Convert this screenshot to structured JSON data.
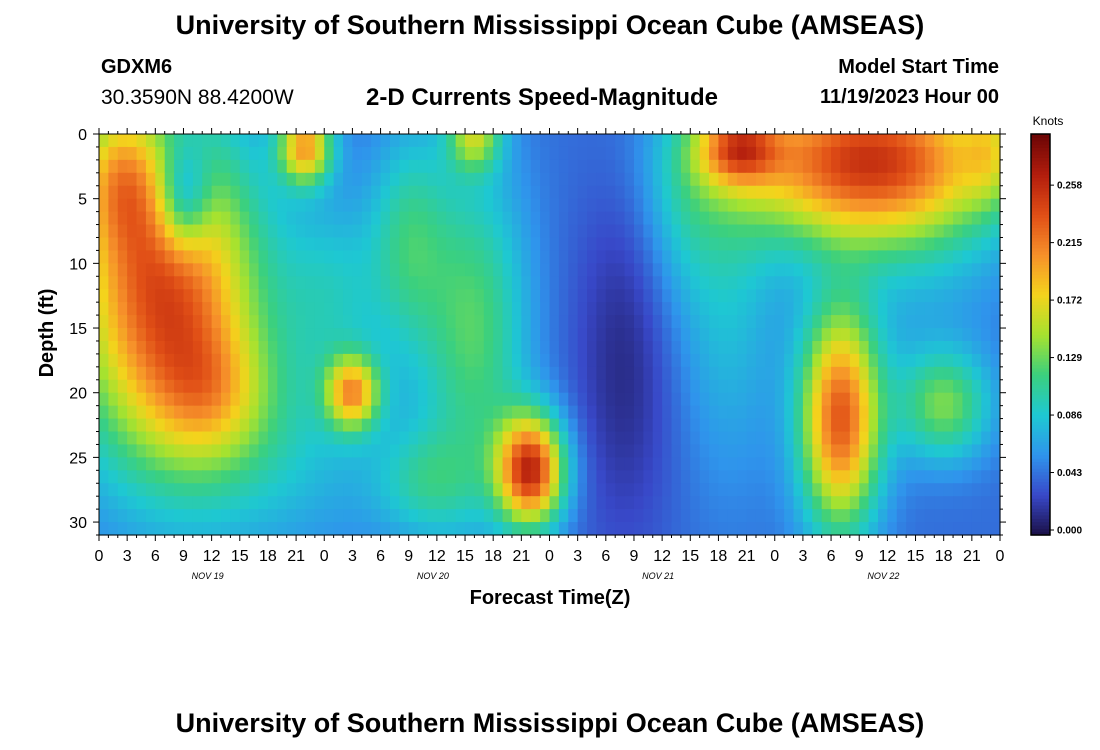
{
  "header": {
    "title": "University of Southern Mississippi Ocean Cube (AMSEAS)",
    "station": "GDXM6",
    "coords": "30.3590N  88.4200W",
    "plot_title": "2-D Currents Speed-Magnitude",
    "model_start_label": "Model Start Time",
    "model_start_value": "11/19/2023 Hour 00"
  },
  "footer": {
    "title": "University of Southern Mississippi Ocean Cube (AMSEAS)"
  },
  "chart_data": {
    "type": "heatmap",
    "xlabel": "Forecast Time(Z)",
    "ylabel": "Depth (ft)",
    "x_range_hours": [
      0,
      96
    ],
    "y_range_ft": [
      0,
      31
    ],
    "x_ticks": [
      {
        "h": 0,
        "label": "0"
      },
      {
        "h": 3,
        "label": "3"
      },
      {
        "h": 6,
        "label": "6"
      },
      {
        "h": 9,
        "label": "9"
      },
      {
        "h": 12,
        "label": "12"
      },
      {
        "h": 15,
        "label": "15"
      },
      {
        "h": 18,
        "label": "18"
      },
      {
        "h": 21,
        "label": "21"
      },
      {
        "h": 24,
        "label": "0"
      },
      {
        "h": 27,
        "label": "3"
      },
      {
        "h": 30,
        "label": "6"
      },
      {
        "h": 33,
        "label": "9"
      },
      {
        "h": 36,
        "label": "12"
      },
      {
        "h": 39,
        "label": "15"
      },
      {
        "h": 42,
        "label": "18"
      },
      {
        "h": 45,
        "label": "21"
      },
      {
        "h": 48,
        "label": "0"
      },
      {
        "h": 51,
        "label": "3"
      },
      {
        "h": 54,
        "label": "6"
      },
      {
        "h": 57,
        "label": "9"
      },
      {
        "h": 60,
        "label": "12"
      },
      {
        "h": 63,
        "label": "15"
      },
      {
        "h": 66,
        "label": "18"
      },
      {
        "h": 69,
        "label": "21"
      },
      {
        "h": 72,
        "label": "0"
      },
      {
        "h": 75,
        "label": "3"
      },
      {
        "h": 78,
        "label": "6"
      },
      {
        "h": 81,
        "label": "9"
      },
      {
        "h": 84,
        "label": "12"
      },
      {
        "h": 87,
        "label": "15"
      },
      {
        "h": 90,
        "label": "18"
      },
      {
        "h": 93,
        "label": "21"
      },
      {
        "h": 96,
        "label": "0"
      }
    ],
    "day_labels": [
      {
        "h": 12,
        "label": "NOV 19"
      },
      {
        "h": 36,
        "label": "NOV 20"
      },
      {
        "h": 60,
        "label": "NOV 21"
      },
      {
        "h": 84,
        "label": "NOV 22"
      }
    ],
    "y_ticks": [
      {
        "ft": 0,
        "label": "0"
      },
      {
        "ft": 5,
        "label": "5"
      },
      {
        "ft": 10,
        "label": "10"
      },
      {
        "ft": 15,
        "label": "15"
      },
      {
        "ft": 20,
        "label": "20"
      },
      {
        "ft": 25,
        "label": "25"
      },
      {
        "ft": 30,
        "label": "30"
      }
    ],
    "colorbar": {
      "unit": "Knots",
      "min": 0.0,
      "max": 0.3,
      "ticks": [
        {
          "v": 0.0,
          "label": "0.000"
        },
        {
          "v": 0.043,
          "label": "0.043"
        },
        {
          "v": 0.086,
          "label": "0.086"
        },
        {
          "v": 0.129,
          "label": "0.129"
        },
        {
          "v": 0.172,
          "label": "0.172"
        },
        {
          "v": 0.215,
          "label": "0.215"
        },
        {
          "v": 0.258,
          "label": "0.258"
        }
      ],
      "colors": [
        "#1a0f45",
        "#3848c8",
        "#2f94ec",
        "#1ec8d2",
        "#3bd07e",
        "#a6e22f",
        "#f4d31c",
        "#f6902a",
        "#e04e16",
        "#b21d0d",
        "#6b0505"
      ]
    },
    "field_base": 0.045,
    "field_features": [
      {
        "h": 7,
        "d": 12,
        "sh": 7,
        "sd": 9,
        "a": 0.2
      },
      {
        "h": 12,
        "d": 20,
        "sh": 4,
        "sd": 3.5,
        "a": 0.05
      },
      {
        "h": 2,
        "d": 3,
        "sh": 3,
        "sd": 4,
        "a": 0.08
      },
      {
        "h": 9,
        "d": 5,
        "sh": 2,
        "sd": 3,
        "a": -0.09
      },
      {
        "h": 22,
        "d": 1,
        "sh": 2,
        "sd": 2,
        "a": 0.15
      },
      {
        "h": 18,
        "d": 24,
        "sh": 9,
        "sd": 6,
        "a": 0.04
      },
      {
        "h": 27,
        "d": 20,
        "sh": 2,
        "sd": 2,
        "a": 0.14
      },
      {
        "h": 25,
        "d": 12,
        "sh": 4,
        "sd": 5,
        "a": 0.04
      },
      {
        "h": 33,
        "d": 8,
        "sh": 3,
        "sd": 6,
        "a": 0.06
      },
      {
        "h": 40,
        "d": 15,
        "sh": 4,
        "sd": 9,
        "a": 0.08
      },
      {
        "h": 40,
        "d": 0,
        "sh": 2,
        "sd": 2,
        "a": 0.1
      },
      {
        "h": 35,
        "d": 27,
        "sh": 4,
        "sd": 3,
        "a": 0.05
      },
      {
        "h": 46,
        "d": 26,
        "sh": 2.5,
        "sd": 3,
        "a": 0.21
      },
      {
        "h": 56,
        "d": 18,
        "sh": 4,
        "sd": 10,
        "a": -0.03
      },
      {
        "h": 62,
        "d": 5,
        "sh": 3,
        "sd": 6,
        "a": 0.03
      },
      {
        "h": 67,
        "d": 12,
        "sh": 4,
        "sd": 10,
        "a": 0.04
      },
      {
        "h": 79,
        "d": 22,
        "sh": 3,
        "sd": 6,
        "a": 0.19
      },
      {
        "h": 82,
        "d": 2,
        "sh": 10,
        "sd": 4.5,
        "a": 0.21
      },
      {
        "h": 68,
        "d": 1,
        "sh": 3,
        "sd": 2,
        "a": 0.12
      },
      {
        "h": 90,
        "d": 21,
        "sh": 3.5,
        "sd": 3,
        "a": 0.09
      },
      {
        "h": 88,
        "d": 11,
        "sh": 6,
        "sd": 5,
        "a": 0.02
      },
      {
        "h": 95,
        "d": 1,
        "sh": 2,
        "sd": 3,
        "a": 0.05
      }
    ]
  }
}
